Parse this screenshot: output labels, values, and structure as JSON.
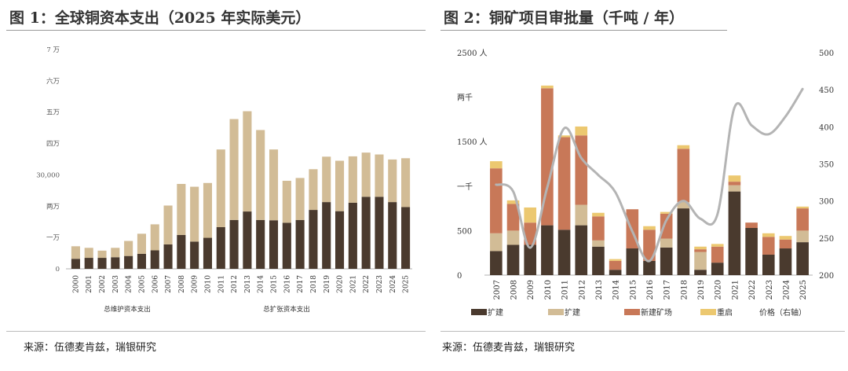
{
  "chart_data": [
    {
      "type": "bar",
      "stacked": true,
      "title": "图 1：全球铜资本支出（2025 年实际美元）",
      "categories": [
        "2000",
        "2001",
        "2002",
        "2003",
        "2004",
        "2005",
        "2006",
        "2007",
        "2008",
        "2009",
        "2010",
        "2011",
        "2012",
        "2013",
        "2014",
        "2015",
        "2016",
        "2017",
        "2018",
        "2019",
        "2020",
        "2021",
        "2022",
        "2023",
        "2024",
        "2025"
      ],
      "series": [
        {
          "name": "总维护资本支出",
          "color": "#4a3a2e",
          "values": [
            3200,
            3500,
            3500,
            3700,
            4100,
            4800,
            5900,
            7800,
            10800,
            8700,
            9900,
            13300,
            15600,
            18300,
            15600,
            15500,
            14700,
            15600,
            18800,
            21300,
            18400,
            21100,
            23000,
            23000,
            21300,
            19700
          ]
        },
        {
          "name": "总扩张资本支出",
          "color": "#d2bc96",
          "values": [
            4000,
            3200,
            2300,
            3000,
            4800,
            6400,
            8300,
            12400,
            16300,
            17500,
            17500,
            24800,
            32200,
            32000,
            28700,
            22600,
            13400,
            13400,
            13000,
            14500,
            16100,
            14800,
            14100,
            13500,
            13600,
            15600
          ]
        }
      ],
      "ylim": [
        0,
        70000
      ],
      "yticks": [
        "0",
        "一万",
        "两万",
        "30,000",
        "四万",
        "五万",
        "六万",
        "7 万"
      ],
      "xlabel": "",
      "ylabel": "",
      "legend_position": "bottom"
    },
    {
      "type": "bar",
      "stacked": true,
      "title": "图 2：铜矿项目审批量（千吨 / 年）",
      "categories": [
        "2007",
        "2008",
        "2009",
        "2010",
        "2011",
        "2012",
        "2013",
        "2014",
        "2015",
        "2016",
        "2017",
        "2018",
        "2019",
        "2020",
        "2021",
        "2022",
        "2023",
        "2024",
        "2025"
      ],
      "series": [
        {
          "name": "扩建",
          "color": "#4a3a2e",
          "values": [
            270,
            340,
            340,
            560,
            510,
            560,
            320,
            60,
            300,
            160,
            310,
            750,
            60,
            140,
            940,
            530,
            230,
            300,
            370
          ]
        },
        {
          "name": "扩建",
          "color": "#d2bc96",
          "values": [
            200,
            160,
            0,
            0,
            0,
            230,
            70,
            0,
            0,
            0,
            100,
            70,
            200,
            0,
            70,
            0,
            0,
            0,
            130
          ]
        },
        {
          "name": "新建矿场",
          "color": "#c87858",
          "values": [
            730,
            300,
            250,
            1540,
            1040,
            780,
            270,
            100,
            440,
            350,
            280,
            600,
            30,
            180,
            40,
            60,
            200,
            100,
            250
          ]
        },
        {
          "name": "重启",
          "color": "#ecc870",
          "values": [
            80,
            40,
            170,
            30,
            20,
            100,
            40,
            20,
            0,
            40,
            20,
            40,
            30,
            30,
            70,
            0,
            40,
            40,
            20
          ]
        }
      ],
      "line": {
        "name": "价格（右轴）",
        "color": "#b4b4b4",
        "values": [
          322,
          313,
          237,
          318,
          398,
          358,
          335,
          312,
          259,
          219,
          274,
          300,
          276,
          282,
          426,
          402,
          390,
          414,
          451
        ]
      },
      "ylim": [
        0,
        2500
      ],
      "yticks_left": [
        "0",
        "500",
        "一千",
        "1500 人",
        "两千",
        "2500 人"
      ],
      "ylim_right": [
        200,
        500
      ],
      "yticks_right": [
        "200",
        "250",
        "300",
        "350",
        "400",
        "450",
        "500"
      ],
      "legend": [
        "扩建",
        "扩建",
        "新建矿场",
        "重启",
        "价格（右轴）"
      ],
      "legend_position": "bottom"
    }
  ],
  "source_left": "来源：伍德麦肯兹，瑞银研究",
  "source_right": "来源：伍德麦肯兹，瑞银研究"
}
